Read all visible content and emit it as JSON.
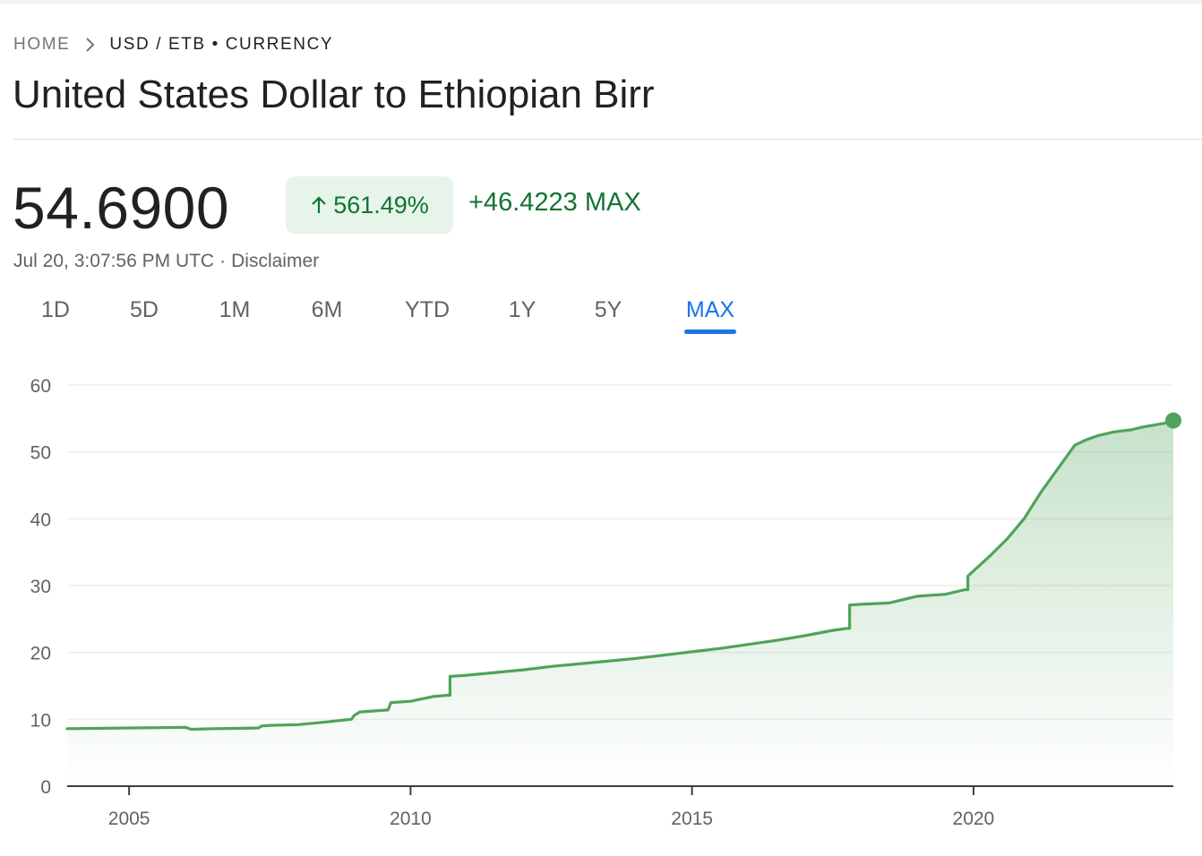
{
  "breadcrumb": {
    "home": "HOME",
    "current": "USD / ETB • CURRENCY"
  },
  "title": "United States Dollar to Ethiopian Birr",
  "quote": {
    "price": "54.6900",
    "change_percent": "561.49%",
    "change_abs": "+46.4223 MAX",
    "timestamp": "Jul 20, 3:07:56 PM UTC",
    "separator": "·",
    "disclaimer": "Disclaimer"
  },
  "tabs": [
    {
      "label": "1D",
      "active": false
    },
    {
      "label": "5D",
      "active": false
    },
    {
      "label": "1M",
      "active": false
    },
    {
      "label": "6M",
      "active": false
    },
    {
      "label": "YTD",
      "active": false
    },
    {
      "label": "1Y",
      "active": false
    },
    {
      "label": "5Y",
      "active": false
    },
    {
      "label": "MAX",
      "active": true
    }
  ],
  "icons": {
    "breadcrumb_separator": "chevron-right-icon",
    "change_direction": "arrow-up-icon"
  },
  "colors": {
    "positive": "#137333",
    "positive_bg": "#e6f4ea",
    "line": "#4fa35a",
    "active_tab": "#1a73e8"
  },
  "chart_data": {
    "type": "area",
    "title": "",
    "xlabel": "",
    "ylabel": "",
    "ylim": [
      0,
      60
    ],
    "xlim": [
      2003.9,
      2023.55
    ],
    "yticks": [
      "0",
      "10",
      "20",
      "30",
      "40",
      "50",
      "60"
    ],
    "xticks": [
      "2005",
      "2010",
      "2015",
      "2020"
    ],
    "grid": true,
    "series": [
      {
        "x": [
          2003.9,
          2004.5,
          2005.0,
          2005.5,
          2006.0,
          2006.1,
          2006.5,
          2007.0,
          2007.3,
          2007.35,
          2007.5,
          2008.0,
          2008.5,
          2008.95,
          2009.0,
          2009.1,
          2009.6,
          2009.65,
          2010.0,
          2010.4,
          2010.65,
          2010.7,
          2011.0,
          2011.5,
          2012.0,
          2012.5,
          2013.0,
          2013.5,
          2014.0,
          2014.5,
          2015.0,
          2015.5,
          2016.0,
          2016.5,
          2017.0,
          2017.5,
          2017.75,
          2017.8,
          2018.0,
          2018.5,
          2019.0,
          2019.5,
          2019.85,
          2019.9,
          2020.0,
          2020.3,
          2020.6,
          2020.9,
          2021.2,
          2021.5,
          2021.8,
          2022.0,
          2022.2,
          2022.5,
          2022.8,
          2023.0,
          2023.2,
          2023.4,
          2023.55
        ],
        "y": [
          8.6,
          8.65,
          8.7,
          8.75,
          8.8,
          8.5,
          8.6,
          8.65,
          8.7,
          9.0,
          9.1,
          9.2,
          9.6,
          10.0,
          10.6,
          11.1,
          11.4,
          12.5,
          12.7,
          13.4,
          13.6,
          16.4,
          16.6,
          17.0,
          17.4,
          17.9,
          18.3,
          18.7,
          19.1,
          19.6,
          20.1,
          20.6,
          21.2,
          21.8,
          22.5,
          23.3,
          23.6,
          27.1,
          27.2,
          27.4,
          28.4,
          28.7,
          29.4,
          31.4,
          32.2,
          34.5,
          37.0,
          40.0,
          44.0,
          47.5,
          51.0,
          51.8,
          52.4,
          53.0,
          53.3,
          53.7,
          54.0,
          54.3,
          54.69
        ]
      }
    ],
    "last_value": 54.69
  }
}
